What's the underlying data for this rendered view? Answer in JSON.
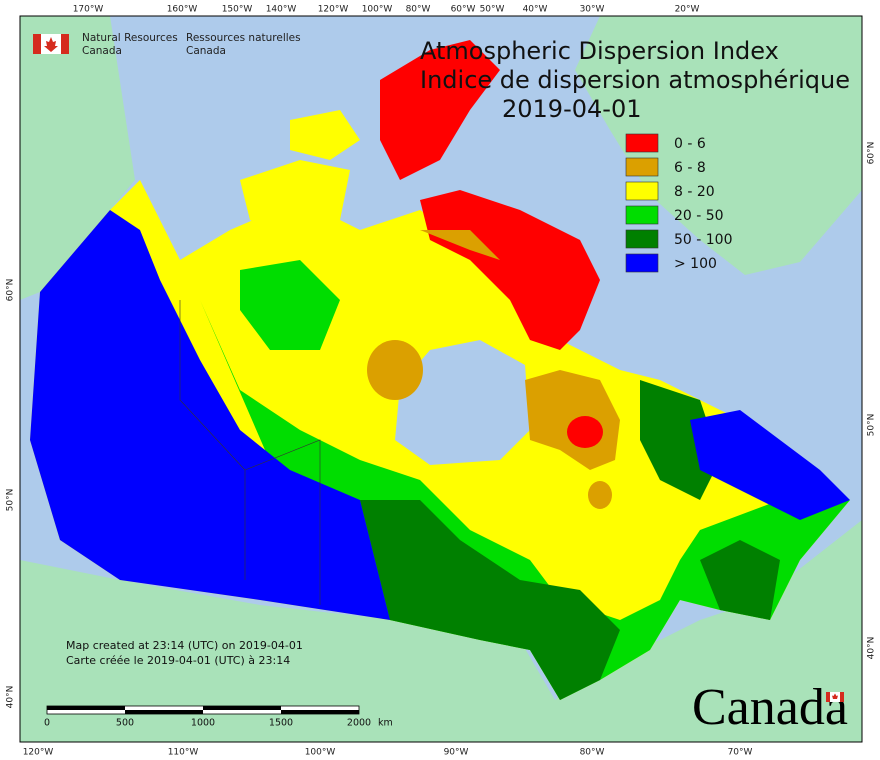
{
  "agency": {
    "en": [
      "Natural Resources",
      "Canada"
    ],
    "fr": [
      "Ressources naturelles",
      "Canada"
    ]
  },
  "title": {
    "line1": "Atmospheric Dispersion Index",
    "line2": "Indice de dispersion atmosphérique",
    "date": "2019-04-01"
  },
  "legend": [
    {
      "label": "0 - 6",
      "color": "#ff0000"
    },
    {
      "label": "6 - 8",
      "color": "#dba000"
    },
    {
      "label": "8 - 20",
      "color": "#ffff00"
    },
    {
      "label": "20 - 50",
      "color": "#00dd00"
    },
    {
      "label": "50 - 100",
      "color": "#008000"
    },
    {
      "label": "> 100",
      "color": "#0000ff"
    }
  ],
  "notes": [
    "Map created at 23:14 (UTC) on 2019-04-01",
    "Carte créée le 2019-04-01 (UTC) à 23:14"
  ],
  "scale_bar": {
    "labels": [
      "0",
      "500",
      "1000",
      "1500",
      "2000"
    ],
    "unit": "km"
  },
  "graticule": {
    "top": [
      "170°W",
      "160°W",
      "150°W",
      "140°W",
      "120°W",
      "100°W",
      "80°W",
      "60°W",
      "50°W",
      "40°W",
      "30°W",
      "20°W"
    ],
    "bottom": [
      "120°W",
      "110°W",
      "100°W",
      "90°W",
      "80°W",
      "70°W"
    ],
    "left": [
      "60°N",
      "50°N",
      "40°N"
    ],
    "right": [
      "60°N",
      "50°N",
      "40°N"
    ]
  },
  "wordmark": "Canada"
}
